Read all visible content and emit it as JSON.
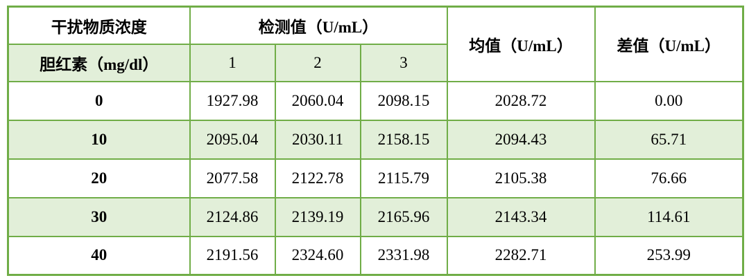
{
  "table": {
    "title_semantic": "bilirubin-interference-test-table",
    "colors": {
      "border_green": "#70ad47",
      "band_fill_green": "#e2efd9",
      "text": "#000000",
      "background": "#ffffff"
    },
    "header": {
      "col_interference": "干扰物质浓度",
      "col_detection": "检测值（U/mL）",
      "col_mean": "均值（U/mL）",
      "col_diff": "差值（U/mL）",
      "sub_row_label": "胆红素（mg/dl）",
      "sub_cols": [
        "1",
        "2",
        "3"
      ]
    },
    "rows": [
      {
        "concentration": "0",
        "values": [
          "1927.98",
          "2060.04",
          "2098.15"
        ],
        "mean": "2028.72",
        "diff": "0.00"
      },
      {
        "concentration": "10",
        "values": [
          "2095.04",
          "2030.11",
          "2158.15"
        ],
        "mean": "2094.43",
        "diff": "65.71"
      },
      {
        "concentration": "20",
        "values": [
          "2077.58",
          "2122.78",
          "2115.79"
        ],
        "mean": "2105.38",
        "diff": "76.66"
      },
      {
        "concentration": "30",
        "values": [
          "2124.86",
          "2139.19",
          "2165.96"
        ],
        "mean": "2143.34",
        "diff": "114.61"
      },
      {
        "concentration": "40",
        "values": [
          "2191.56",
          "2324.60",
          "2331.98"
        ],
        "mean": "2282.71",
        "diff": "253.99"
      }
    ]
  }
}
